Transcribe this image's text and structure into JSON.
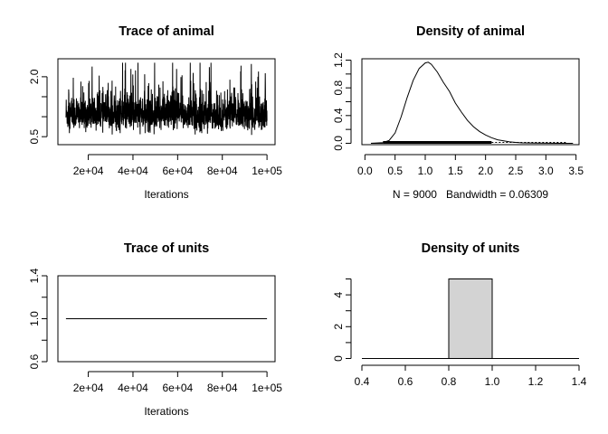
{
  "chart_data": [
    {
      "type": "line",
      "title": "Trace of animal",
      "xlabel": "Iterations",
      "ylabel": "",
      "x_range": [
        10000,
        100000
      ],
      "xlim": [
        6400,
        103600
      ],
      "ylim": [
        0.3,
        2.45
      ],
      "x_ticks": [
        20000,
        40000,
        60000,
        80000,
        100000
      ],
      "x_tick_labels": [
        "2e+04",
        "4e+04",
        "6e+04",
        "8e+04",
        "1e+05"
      ],
      "y_ticks": [
        0.5,
        1.0,
        1.5,
        2.0
      ],
      "y_tick_labels": [
        "0.5",
        "",
        "",
        "2.0"
      ],
      "series": [
        {
          "n_samples": 9000,
          "approx_center": 1.05,
          "min": 0.45,
          "max": 2.35
        }
      ]
    },
    {
      "type": "line",
      "title": "Density of animal",
      "xlabel": "N = 9000   Bandwidth = 0.06309",
      "ylabel": "",
      "xlim": [
        -0.05,
        3.55
      ],
      "ylim": [
        -0.02,
        1.22
      ],
      "x_ticks": [
        0.0,
        0.5,
        1.0,
        1.5,
        2.0,
        2.5,
        3.0,
        3.5
      ],
      "x_tick_labels": [
        "0.0",
        "0.5",
        "1.0",
        "1.5",
        "2.0",
        "2.5",
        "3.0",
        "3.5"
      ],
      "y_ticks": [
        0.0,
        0.2,
        0.4,
        0.6,
        0.8,
        1.0,
        1.2
      ],
      "y_tick_labels": [
        "0.0",
        "",
        "0.4",
        "",
        "0.8",
        "",
        "1.2"
      ],
      "series": [
        {
          "x": [
            0.1,
            0.3,
            0.4,
            0.5,
            0.6,
            0.7,
            0.8,
            0.9,
            1.0,
            1.05,
            1.1,
            1.2,
            1.3,
            1.4,
            1.5,
            1.6,
            1.7,
            1.8,
            1.9,
            2.0,
            2.1,
            2.2,
            2.3,
            2.4,
            2.5,
            2.6,
            2.8,
            3.0,
            3.2,
            3.45
          ],
          "y": [
            0.0,
            0.01,
            0.04,
            0.15,
            0.38,
            0.66,
            0.91,
            1.08,
            1.16,
            1.17,
            1.14,
            1.03,
            0.88,
            0.75,
            0.58,
            0.45,
            0.33,
            0.24,
            0.17,
            0.12,
            0.08,
            0.05,
            0.035,
            0.02,
            0.012,
            0.006,
            0.003,
            0.001,
            0.0,
            0.0
          ]
        }
      ],
      "rug": {
        "from": 0.3,
        "to": 2.1,
        "sparse_to": 3.35
      }
    },
    {
      "type": "line",
      "title": "Trace of units",
      "xlabel": "Iterations",
      "ylabel": "",
      "x_range": [
        10000,
        100000
      ],
      "xlim": [
        6400,
        103600
      ],
      "ylim": [
        0.6,
        1.4
      ],
      "x_ticks": [
        20000,
        40000,
        60000,
        80000,
        100000
      ],
      "x_tick_labels": [
        "2e+04",
        "4e+04",
        "6e+04",
        "8e+04",
        "1e+05"
      ],
      "y_ticks": [
        0.6,
        0.8,
        1.0,
        1.2,
        1.4
      ],
      "y_tick_labels": [
        "0.6",
        "",
        "1.0",
        "",
        "1.4"
      ],
      "series": [
        {
          "x": [
            10000,
            100000
          ],
          "y": [
            1.0,
            1.0
          ]
        }
      ]
    },
    {
      "type": "bar",
      "title": "Density of units",
      "xlabel": "",
      "ylabel": "",
      "xlim": [
        0.4,
        1.4
      ],
      "ylim": [
        -0.2,
        5.2
      ],
      "x_ticks": [
        0.4,
        0.6,
        0.8,
        1.0,
        1.2,
        1.4
      ],
      "x_tick_labels": [
        "0.4",
        "0.6",
        "0.8",
        "1.0",
        "1.2",
        "1.4"
      ],
      "y_ticks": [
        0,
        1,
        2,
        3,
        4,
        5
      ],
      "y_tick_labels": [
        "0",
        "",
        "2",
        "",
        "4",
        ""
      ],
      "bars": [
        {
          "x0": 0.8,
          "x1": 1.0,
          "value": 5
        }
      ],
      "baseline_range": [
        0.4,
        1.4
      ],
      "bar_color": "#d3d3d3"
    }
  ]
}
